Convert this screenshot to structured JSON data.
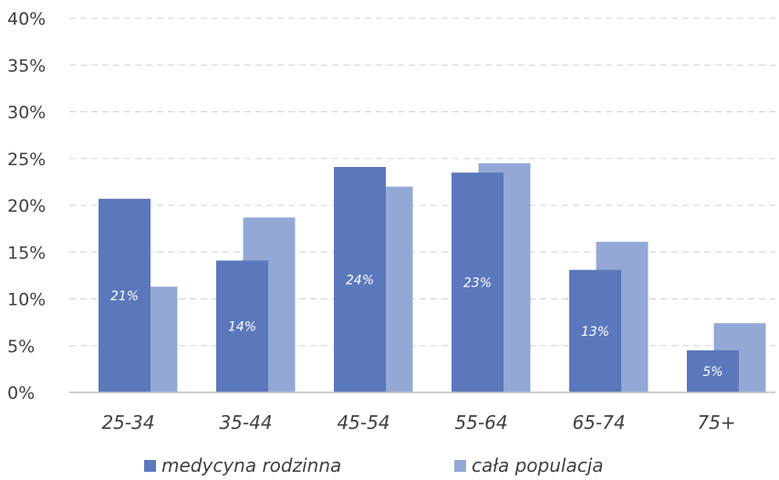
{
  "chart_data": {
    "type": "bar",
    "categories": [
      "25-34",
      "35-44",
      "45-54",
      "55-64",
      "65-74",
      "75+"
    ],
    "series": [
      {
        "name": "medycyna rodzinna",
        "values": [
          20.7,
          14.1,
          24.1,
          23.5,
          13.1,
          4.5
        ],
        "labels": [
          "21%",
          "14%",
          "24%",
          "23%",
          "13%",
          "5%"
        ],
        "color": "#5b78bd"
      },
      {
        "name": "cała populacja",
        "values": [
          11.3,
          18.7,
          22.0,
          24.5,
          16.1,
          7.4
        ],
        "color": "#94a8d6"
      }
    ],
    "y_ticks": [
      "0%",
      "5%",
      "10%",
      "15%",
      "20%",
      "25%",
      "30%",
      "35%",
      "40%"
    ],
    "ylim": [
      0,
      40
    ],
    "ystep": 5,
    "grid": true,
    "legend_position": "bottom",
    "title": "",
    "xlabel": "",
    "ylabel": ""
  }
}
